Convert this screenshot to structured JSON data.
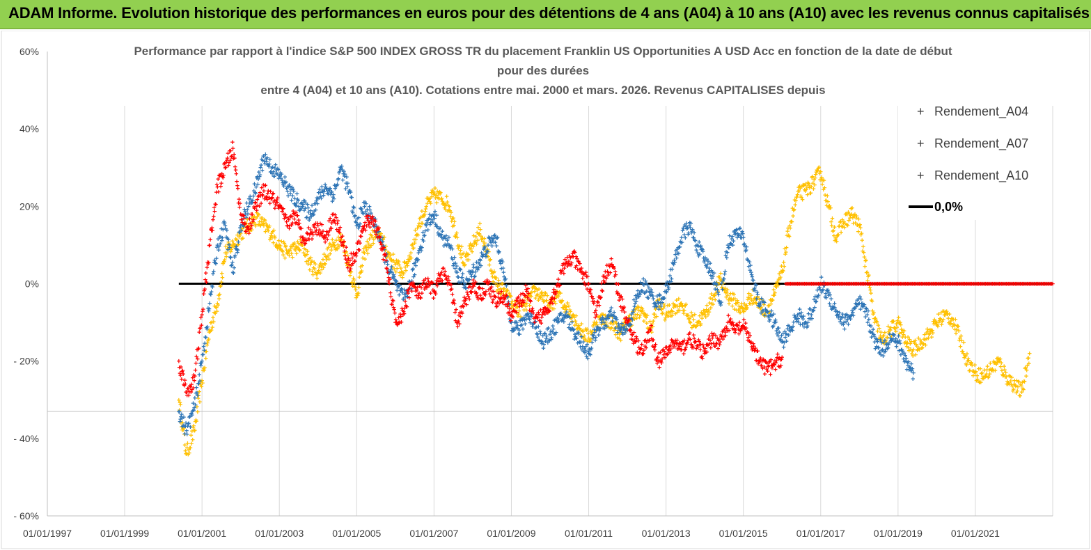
{
  "banner": {
    "text": "ADAM Informe. Evolution historique des performances en euros pour des détentions de 4 ans (A04) à 10 ans (A10) avec les revenus connus capitalisés"
  },
  "chart_data": {
    "type": "scatter",
    "title": [
      "Performance par rapport à l'indice S&P 500 INDEX GROSS TR  du placement Franklin US Opportunities A USD Acc en fonction de la date de début",
      "pour des durées",
      "entre 4 (A04) et 10 ans (A10). Cotations entre mai. 2000 et mars. 2026. Revenus CAPITALISES depuis"
    ],
    "xlabel": "",
    "ylabel": "",
    "xlim": [
      1997.0,
      2023.0
    ],
    "ylim": [
      -60,
      60
    ],
    "x_ticks": [
      1997,
      1999,
      2001,
      2003,
      2005,
      2007,
      2009,
      2011,
      2013,
      2015,
      2017,
      2019,
      2021
    ],
    "x_tick_labels": [
      "01/01/1997",
      "01/01/1999",
      "01/01/2001",
      "01/01/2003",
      "01/01/2005",
      "01/01/2007",
      "01/01/2009",
      "01/01/2011",
      "01/01/2013",
      "01/01/2015",
      "01/01/2017",
      "01/01/2019",
      "01/01/2021"
    ],
    "y_ticks": [
      60,
      40,
      20,
      0,
      -20,
      -40,
      -60
    ],
    "y_tick_labels": [
      "60%",
      "40%",
      "20%",
      "0%",
      "- 20%",
      "- 40%",
      "- 60%"
    ],
    "grid": "vertical",
    "legend_position": "right",
    "series": [
      {
        "name": "Rendement_A04",
        "color": "#ffc000",
        "marker": "plus",
        "points": [
          [
            2000.4,
            -30
          ],
          [
            2000.6,
            -44
          ],
          [
            2000.8,
            -38
          ],
          [
            2001.0,
            -25
          ],
          [
            2001.2,
            -12
          ],
          [
            2001.4,
            -5
          ],
          [
            2001.6,
            8
          ],
          [
            2001.8,
            10
          ],
          [
            2002.0,
            13
          ],
          [
            2002.2,
            15
          ],
          [
            2002.4,
            17
          ],
          [
            2002.6,
            15
          ],
          [
            2002.8,
            13
          ],
          [
            2003.0,
            10
          ],
          [
            2003.2,
            8
          ],
          [
            2003.4,
            9
          ],
          [
            2003.6,
            10
          ],
          [
            2003.8,
            5
          ],
          [
            2004.0,
            3
          ],
          [
            2004.2,
            7
          ],
          [
            2004.4,
            10
          ],
          [
            2004.6,
            12
          ],
          [
            2004.8,
            5
          ],
          [
            2005.0,
            -3
          ],
          [
            2005.2,
            8
          ],
          [
            2005.4,
            12
          ],
          [
            2005.6,
            13
          ],
          [
            2005.8,
            8
          ],
          [
            2006.0,
            5
          ],
          [
            2006.2,
            3
          ],
          [
            2006.4,
            8
          ],
          [
            2006.6,
            15
          ],
          [
            2006.8,
            20
          ],
          [
            2007.0,
            23
          ],
          [
            2007.2,
            22
          ],
          [
            2007.4,
            20
          ],
          [
            2007.6,
            12
          ],
          [
            2007.8,
            5
          ],
          [
            2008.0,
            10
          ],
          [
            2008.2,
            14
          ],
          [
            2008.4,
            7
          ],
          [
            2008.6,
            0
          ],
          [
            2008.8,
            -2
          ],
          [
            2009.0,
            -5
          ],
          [
            2009.2,
            -7
          ],
          [
            2009.4,
            -5
          ],
          [
            2009.6,
            -2
          ],
          [
            2009.8,
            -3
          ],
          [
            2010.0,
            -6
          ],
          [
            2010.2,
            -3
          ],
          [
            2010.4,
            -6
          ],
          [
            2010.6,
            -8
          ],
          [
            2010.8,
            -12
          ],
          [
            2011.0,
            -14
          ],
          [
            2011.2,
            -10
          ],
          [
            2011.4,
            -9
          ],
          [
            2011.6,
            -10
          ],
          [
            2011.8,
            -13
          ],
          [
            2012.0,
            -10
          ],
          [
            2012.2,
            -8
          ],
          [
            2012.4,
            -7
          ],
          [
            2012.6,
            -12
          ],
          [
            2012.8,
            -5
          ],
          [
            2013.0,
            -8
          ],
          [
            2013.2,
            -6
          ],
          [
            2013.4,
            -5
          ],
          [
            2013.6,
            -9
          ],
          [
            2013.8,
            -10
          ],
          [
            2014.0,
            -8
          ],
          [
            2014.2,
            -4
          ],
          [
            2014.4,
            1
          ],
          [
            2014.6,
            -3
          ],
          [
            2014.8,
            -5
          ],
          [
            2015.0,
            -7
          ],
          [
            2015.2,
            -3
          ],
          [
            2015.4,
            -5
          ],
          [
            2015.6,
            -7
          ],
          [
            2015.8,
            -3
          ],
          [
            2016.0,
            3
          ],
          [
            2016.2,
            15
          ],
          [
            2016.4,
            23
          ],
          [
            2016.6,
            24
          ],
          [
            2016.8,
            26
          ],
          [
            2017.0,
            29
          ],
          [
            2017.2,
            20
          ],
          [
            2017.4,
            12
          ],
          [
            2017.6,
            16
          ],
          [
            2017.8,
            18
          ],
          [
            2018.0,
            15
          ],
          [
            2018.2,
            3
          ],
          [
            2018.4,
            -10
          ],
          [
            2018.6,
            -15
          ],
          [
            2018.8,
            -12
          ],
          [
            2019.0,
            -10
          ],
          [
            2019.2,
            -15
          ],
          [
            2019.4,
            -17
          ],
          [
            2019.6,
            -15
          ],
          [
            2019.8,
            -13
          ],
          [
            2020.0,
            -10
          ],
          [
            2020.2,
            -8
          ],
          [
            2020.4,
            -9
          ],
          [
            2020.6,
            -14
          ],
          [
            2020.8,
            -20
          ],
          [
            2021.0,
            -23
          ],
          [
            2021.2,
            -24
          ],
          [
            2021.4,
            -22
          ],
          [
            2021.6,
            -20
          ],
          [
            2021.8,
            -24
          ],
          [
            2022.0,
            -26
          ],
          [
            2022.2,
            -28
          ],
          [
            2022.4,
            -18
          ]
        ]
      },
      {
        "name": "Rendement_A07",
        "color": "#2e75b6",
        "marker": "plus",
        "points": [
          [
            2000.4,
            -33
          ],
          [
            2000.6,
            -38
          ],
          [
            2000.8,
            -32
          ],
          [
            2001.0,
            -20
          ],
          [
            2001.2,
            -5
          ],
          [
            2001.4,
            10
          ],
          [
            2001.6,
            15
          ],
          [
            2001.8,
            3
          ],
          [
            2002.0,
            15
          ],
          [
            2002.2,
            20
          ],
          [
            2002.4,
            25
          ],
          [
            2002.6,
            33
          ],
          [
            2002.8,
            30
          ],
          [
            2003.0,
            28
          ],
          [
            2003.2,
            25
          ],
          [
            2003.4,
            22
          ],
          [
            2003.6,
            20
          ],
          [
            2003.8,
            18
          ],
          [
            2004.0,
            22
          ],
          [
            2004.2,
            25
          ],
          [
            2004.4,
            23
          ],
          [
            2004.6,
            30
          ],
          [
            2004.8,
            24
          ],
          [
            2005.0,
            15
          ],
          [
            2005.2,
            20
          ],
          [
            2005.4,
            17
          ],
          [
            2005.6,
            12
          ],
          [
            2005.8,
            5
          ],
          [
            2006.0,
            0
          ],
          [
            2006.2,
            -4
          ],
          [
            2006.4,
            0
          ],
          [
            2006.6,
            8
          ],
          [
            2006.8,
            15
          ],
          [
            2007.0,
            18
          ],
          [
            2007.2,
            12
          ],
          [
            2007.4,
            10
          ],
          [
            2007.6,
            3
          ],
          [
            2007.8,
            0
          ],
          [
            2008.0,
            3
          ],
          [
            2008.2,
            6
          ],
          [
            2008.4,
            10
          ],
          [
            2008.6,
            12
          ],
          [
            2008.8,
            3
          ],
          [
            2009.0,
            -10
          ],
          [
            2009.2,
            -12
          ],
          [
            2009.4,
            -8
          ],
          [
            2009.6,
            -10
          ],
          [
            2009.8,
            -15
          ],
          [
            2010.0,
            -13
          ],
          [
            2010.2,
            -10
          ],
          [
            2010.4,
            -8
          ],
          [
            2010.6,
            -12
          ],
          [
            2010.8,
            -15
          ],
          [
            2011.0,
            -18
          ],
          [
            2011.2,
            -12
          ],
          [
            2011.4,
            -10
          ],
          [
            2011.6,
            -8
          ],
          [
            2011.8,
            -12
          ],
          [
            2012.0,
            -12
          ],
          [
            2012.2,
            -5
          ],
          [
            2012.4,
            0
          ],
          [
            2012.6,
            -3
          ],
          [
            2012.8,
            -5
          ],
          [
            2013.0,
            -2
          ],
          [
            2013.2,
            5
          ],
          [
            2013.4,
            12
          ],
          [
            2013.6,
            15
          ],
          [
            2013.8,
            10
          ],
          [
            2014.0,
            6
          ],
          [
            2014.2,
            3
          ],
          [
            2014.4,
            -5
          ],
          [
            2014.6,
            10
          ],
          [
            2014.8,
            13
          ],
          [
            2015.0,
            12
          ],
          [
            2015.2,
            3
          ],
          [
            2015.4,
            -5
          ],
          [
            2015.6,
            -7
          ],
          [
            2015.8,
            -10
          ],
          [
            2016.0,
            -15
          ],
          [
            2016.2,
            -12
          ],
          [
            2016.4,
            -8
          ],
          [
            2016.6,
            -10
          ],
          [
            2016.8,
            -7
          ],
          [
            2017.0,
            0
          ],
          [
            2017.2,
            -3
          ],
          [
            2017.4,
            -7
          ],
          [
            2017.6,
            -10
          ],
          [
            2017.8,
            -8
          ],
          [
            2018.0,
            -5
          ],
          [
            2018.2,
            -8
          ],
          [
            2018.4,
            -15
          ],
          [
            2018.6,
            -17
          ],
          [
            2018.8,
            -14
          ],
          [
            2019.0,
            -15
          ],
          [
            2019.2,
            -20
          ],
          [
            2019.4,
            -23
          ]
        ]
      },
      {
        "name": "Rendement_A10",
        "color": "#ff0000",
        "marker": "plus",
        "points": [
          [
            2000.4,
            -20
          ],
          [
            2000.6,
            -28
          ],
          [
            2000.8,
            -25
          ],
          [
            2001.0,
            -8
          ],
          [
            2001.2,
            10
          ],
          [
            2001.4,
            25
          ],
          [
            2001.6,
            30
          ],
          [
            2001.8,
            35
          ],
          [
            2002.0,
            18
          ],
          [
            2002.2,
            14
          ],
          [
            2002.4,
            20
          ],
          [
            2002.6,
            24
          ],
          [
            2002.8,
            22
          ],
          [
            2003.0,
            20
          ],
          [
            2003.2,
            15
          ],
          [
            2003.4,
            18
          ],
          [
            2003.6,
            12
          ],
          [
            2003.8,
            13
          ],
          [
            2004.0,
            15
          ],
          [
            2004.2,
            12
          ],
          [
            2004.4,
            18
          ],
          [
            2004.6,
            12
          ],
          [
            2004.8,
            5
          ],
          [
            2005.0,
            8
          ],
          [
            2005.2,
            15
          ],
          [
            2005.4,
            17
          ],
          [
            2005.6,
            12
          ],
          [
            2005.8,
            3
          ],
          [
            2006.0,
            -10
          ],
          [
            2006.2,
            -8
          ],
          [
            2006.4,
            0
          ],
          [
            2006.6,
            -3
          ],
          [
            2006.8,
            0
          ],
          [
            2007.0,
            -2
          ],
          [
            2007.2,
            3
          ],
          [
            2007.4,
            0
          ],
          [
            2007.6,
            -10
          ],
          [
            2007.8,
            -5
          ],
          [
            2008.0,
            0
          ],
          [
            2008.2,
            -3
          ],
          [
            2008.4,
            0
          ],
          [
            2008.6,
            -5
          ],
          [
            2008.8,
            -3
          ],
          [
            2009.0,
            -8
          ],
          [
            2009.2,
            -5
          ],
          [
            2009.4,
            -2
          ],
          [
            2009.6,
            -10
          ],
          [
            2009.8,
            -8
          ],
          [
            2010.0,
            -5
          ],
          [
            2010.2,
            0
          ],
          [
            2010.4,
            5
          ],
          [
            2010.6,
            7
          ],
          [
            2010.8,
            3
          ],
          [
            2011.0,
            0
          ],
          [
            2011.2,
            -8
          ],
          [
            2011.4,
            2
          ],
          [
            2011.6,
            5
          ],
          [
            2011.8,
            -3
          ],
          [
            2012.0,
            -10
          ],
          [
            2012.2,
            -15
          ],
          [
            2012.4,
            -18
          ],
          [
            2012.6,
            -12
          ],
          [
            2012.8,
            -20
          ],
          [
            2013.0,
            -18
          ],
          [
            2013.2,
            -15
          ],
          [
            2013.4,
            -17
          ],
          [
            2013.6,
            -14
          ],
          [
            2013.8,
            -16
          ],
          [
            2014.0,
            -18
          ],
          [
            2014.2,
            -14
          ],
          [
            2014.4,
            -15
          ],
          [
            2014.6,
            -10
          ],
          [
            2014.8,
            -12
          ],
          [
            2015.0,
            -11
          ],
          [
            2015.2,
            -15
          ],
          [
            2015.4,
            -20
          ],
          [
            2015.6,
            -22
          ],
          [
            2015.8,
            -21
          ],
          [
            2016.0,
            -19
          ]
        ]
      }
    ],
    "zero_line": {
      "name": "0,0%",
      "color": "#000000",
      "x_range": [
        2000.4,
        2023.0
      ],
      "value": 0
    },
    "red_flat_segment": {
      "series": "Rendement_A10",
      "x_range": [
        2016.1,
        2023.0
      ],
      "value": 0
    }
  }
}
